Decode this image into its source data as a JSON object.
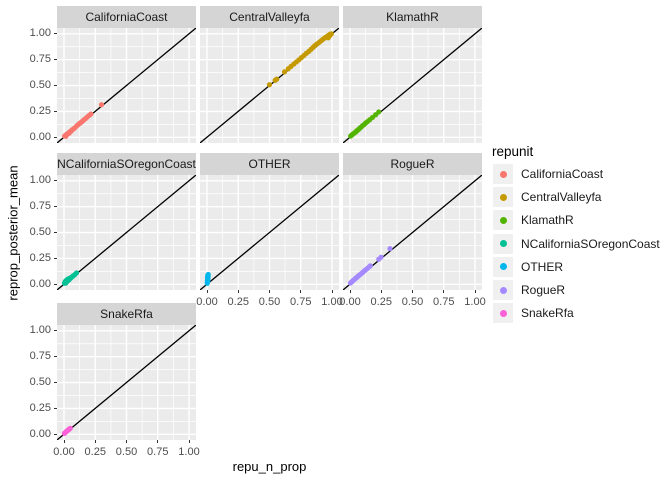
{
  "chart_data": {
    "type": "scatter",
    "title": "",
    "xlabel": "repu_n_prop",
    "ylabel": "reprop_posterior_mean",
    "xlim": [
      0,
      1
    ],
    "ylim": [
      0,
      1
    ],
    "grid": "major+minor, white on grey panel",
    "identity_line": true,
    "x_ticks": {
      "values": [
        0,
        0.25,
        0.5,
        0.75,
        1
      ],
      "labels": [
        "0.00",
        "0.25",
        "0.50",
        "0.75",
        "1.00"
      ]
    },
    "y_ticks": {
      "values": [
        1,
        0.75,
        0.5,
        0.25,
        0
      ],
      "labels": [
        "1.00",
        "0.75",
        "0.50",
        "0.25",
        "0.00"
      ]
    },
    "minor_ticks": [
      0.125,
      0.375,
      0.625,
      0.875
    ],
    "legend": {
      "title": "repunit",
      "position": "right"
    },
    "style": {
      "panel_bg": "#EBEBEB",
      "strip_bg": "#D5D5D5",
      "grid_color": "#FFFFFF",
      "line_color": "#000000",
      "tick_text_color": "#4D4D4D",
      "legend_key_bg": "#F0F0F0"
    },
    "facets": [
      {
        "label": "CaliforniaCoast",
        "color": "#F8766D",
        "points": [
          [
            0.005,
            0.012
          ],
          [
            0.01,
            0.018
          ],
          [
            0.015,
            0.01
          ],
          [
            0.02,
            0.028
          ],
          [
            0.028,
            0.03
          ],
          [
            0.035,
            0.042
          ],
          [
            0.042,
            0.04
          ],
          [
            0.05,
            0.058
          ],
          [
            0.058,
            0.06
          ],
          [
            0.065,
            0.072
          ],
          [
            0.075,
            0.08
          ],
          [
            0.085,
            0.09
          ],
          [
            0.1,
            0.108
          ],
          [
            0.11,
            0.118
          ],
          [
            0.12,
            0.13
          ],
          [
            0.13,
            0.138
          ],
          [
            0.14,
            0.148
          ],
          [
            0.15,
            0.158
          ],
          [
            0.16,
            0.17
          ],
          [
            0.172,
            0.18
          ],
          [
            0.185,
            0.195
          ],
          [
            0.2,
            0.21
          ],
          [
            0.215,
            0.225
          ],
          [
            0.3,
            0.315
          ]
        ]
      },
      {
        "label": "CentralValleyfa",
        "color": "#C49A00",
        "points": [
          [
            0.5,
            0.508
          ],
          [
            0.545,
            0.55
          ],
          [
            0.558,
            0.562
          ],
          [
            0.62,
            0.632
          ],
          [
            0.65,
            0.662
          ],
          [
            0.672,
            0.685
          ],
          [
            0.695,
            0.708
          ],
          [
            0.715,
            0.728
          ],
          [
            0.735,
            0.748
          ],
          [
            0.755,
            0.77
          ],
          [
            0.775,
            0.79
          ],
          [
            0.795,
            0.812
          ],
          [
            0.815,
            0.83
          ],
          [
            0.832,
            0.85
          ],
          [
            0.848,
            0.868
          ],
          [
            0.862,
            0.885
          ],
          [
            0.878,
            0.9
          ],
          [
            0.895,
            0.915
          ],
          [
            0.91,
            0.93
          ],
          [
            0.925,
            0.945
          ],
          [
            0.94,
            0.958
          ],
          [
            0.952,
            0.968
          ],
          [
            0.965,
            0.98
          ],
          [
            0.97,
            0.962
          ],
          [
            0.978,
            0.99
          ],
          [
            0.985,
            0.985
          ],
          [
            0.988,
            0.998
          ],
          [
            0.995,
            1.0
          ]
        ]
      },
      {
        "label": "KlamathR",
        "color": "#53B400",
        "points": [
          [
            0.005,
            0.012
          ],
          [
            0.012,
            0.02
          ],
          [
            0.02,
            0.028
          ],
          [
            0.028,
            0.035
          ],
          [
            0.035,
            0.042
          ],
          [
            0.045,
            0.05
          ],
          [
            0.052,
            0.06
          ],
          [
            0.06,
            0.068
          ],
          [
            0.07,
            0.078
          ],
          [
            0.08,
            0.09
          ],
          [
            0.09,
            0.1
          ],
          [
            0.1,
            0.112
          ],
          [
            0.112,
            0.122
          ],
          [
            0.125,
            0.138
          ],
          [
            0.14,
            0.152
          ],
          [
            0.158,
            0.17
          ],
          [
            0.18,
            0.192
          ],
          [
            0.205,
            0.218
          ],
          [
            0.23,
            0.245
          ]
        ]
      },
      {
        "label": "NCaliforniaSOregonCoast",
        "color": "#00C094",
        "points": [
          [
            0.004,
            0.01
          ],
          [
            0.008,
            0.022
          ],
          [
            0.012,
            0.03
          ],
          [
            0.015,
            0.012
          ],
          [
            0.02,
            0.04
          ],
          [
            0.024,
            0.028
          ],
          [
            0.028,
            0.048
          ],
          [
            0.032,
            0.035
          ],
          [
            0.038,
            0.055
          ],
          [
            0.042,
            0.045
          ],
          [
            0.048,
            0.06
          ],
          [
            0.055,
            0.062
          ],
          [
            0.062,
            0.07
          ],
          [
            0.072,
            0.08
          ],
          [
            0.085,
            0.092
          ],
          [
            0.1,
            0.11
          ]
        ]
      },
      {
        "label": "OTHER",
        "color": "#00B6EB",
        "points": [
          [
            0.002,
            0.01
          ],
          [
            0.004,
            0.018
          ],
          [
            0.006,
            0.026
          ],
          [
            0.003,
            0.034
          ],
          [
            0.007,
            0.042
          ],
          [
            0.005,
            0.05
          ],
          [
            0.008,
            0.058
          ],
          [
            0.004,
            0.066
          ],
          [
            0.009,
            0.075
          ],
          [
            0.006,
            0.084
          ],
          [
            0.01,
            0.095
          ]
        ]
      },
      {
        "label": "RogueR",
        "color": "#A58AFF",
        "points": [
          [
            0.004,
            0.012
          ],
          [
            0.01,
            0.02
          ],
          [
            0.018,
            0.028
          ],
          [
            0.026,
            0.038
          ],
          [
            0.034,
            0.045
          ],
          [
            0.042,
            0.055
          ],
          [
            0.05,
            0.062
          ],
          [
            0.058,
            0.07
          ],
          [
            0.066,
            0.08
          ],
          [
            0.075,
            0.088
          ],
          [
            0.085,
            0.098
          ],
          [
            0.095,
            0.108
          ],
          [
            0.105,
            0.118
          ],
          [
            0.115,
            0.13
          ],
          [
            0.125,
            0.14
          ],
          [
            0.138,
            0.152
          ],
          [
            0.15,
            0.165
          ],
          [
            0.162,
            0.178
          ],
          [
            0.23,
            0.242
          ],
          [
            0.248,
            0.262
          ],
          [
            0.32,
            0.345
          ]
        ]
      },
      {
        "label": "SnakeRfa",
        "color": "#FB61D7",
        "points": [
          [
            0.003,
            0.008
          ],
          [
            0.007,
            0.014
          ],
          [
            0.012,
            0.018
          ],
          [
            0.016,
            0.024
          ],
          [
            0.02,
            0.028
          ],
          [
            0.025,
            0.034
          ],
          [
            0.03,
            0.038
          ],
          [
            0.036,
            0.044
          ],
          [
            0.042,
            0.05
          ],
          [
            0.05,
            0.058
          ]
        ]
      }
    ]
  }
}
